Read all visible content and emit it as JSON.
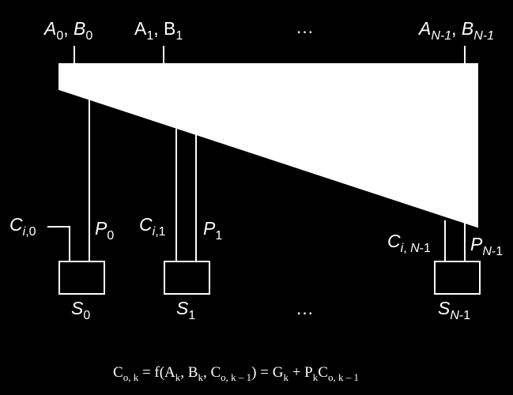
{
  "inputs": [
    {
      "a": "A",
      "a_sub": "0",
      "sep": ", ",
      "b": "B",
      "b_sub": "0"
    },
    {
      "a": "A",
      "a_sub": "1",
      "sep": ", ",
      "b": "B",
      "b_sub": "1"
    },
    {
      "a": "A",
      "a_sub": "N-1",
      "sep": ", ",
      "b": "B",
      "b_sub": "N-1"
    }
  ],
  "ellipsis": "…",
  "carry_in": [
    {
      "c": "C",
      "sub": "i,0"
    },
    {
      "c": "C",
      "sub": "i,1"
    },
    {
      "c": "C",
      "sub": "i, N-1"
    }
  ],
  "propagate": [
    {
      "p": "P",
      "sub": "0"
    },
    {
      "p": "P",
      "sub": "1"
    },
    {
      "p": "P",
      "sub": "N-1"
    }
  ],
  "sums": [
    {
      "s": "S",
      "sub": "0"
    },
    {
      "s": "S",
      "sub": "1"
    },
    {
      "s": "S",
      "sub": "N-1"
    }
  ],
  "equation": {
    "lhs": "C",
    "lhs_sub": "o, k",
    "eq1": " = ",
    "f_open": "f(A",
    "f_sub1": "k",
    "f_mid1": ", B",
    "f_sub2": "k",
    "f_mid2": ", C",
    "f_sub3": "o, k – 1",
    "f_close": ")",
    "eq2": " = ",
    "g": "G",
    "g_sub": "k",
    "plus": " + P",
    "p_sub": "k",
    "c": "C",
    "c_sub": "o, k – 1"
  }
}
